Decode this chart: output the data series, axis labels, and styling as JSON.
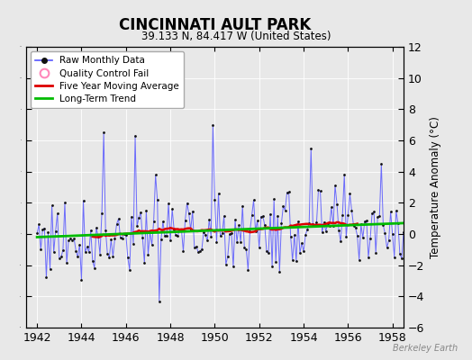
{
  "title": "CINCINNATI AULT PARK",
  "subtitle": "39.133 N, 84.417 W (United States)",
  "ylabel": "Temperature Anomaly (°C)",
  "watermark": "Berkeley Earth",
  "xlim": [
    1941.5,
    1958.5
  ],
  "ylim": [
    -6,
    12
  ],
  "yticks": [
    -6,
    -4,
    -2,
    0,
    2,
    4,
    6,
    8,
    10,
    12
  ],
  "xticks": [
    1942,
    1944,
    1946,
    1948,
    1950,
    1952,
    1954,
    1956,
    1958
  ],
  "bg_color": "#e8e8e8",
  "raw_color": "#5555ff",
  "raw_marker_color": "#111111",
  "ma_color": "#dd0000",
  "trend_color": "#00bb00",
  "start_year": 1942,
  "n_months": 204
}
